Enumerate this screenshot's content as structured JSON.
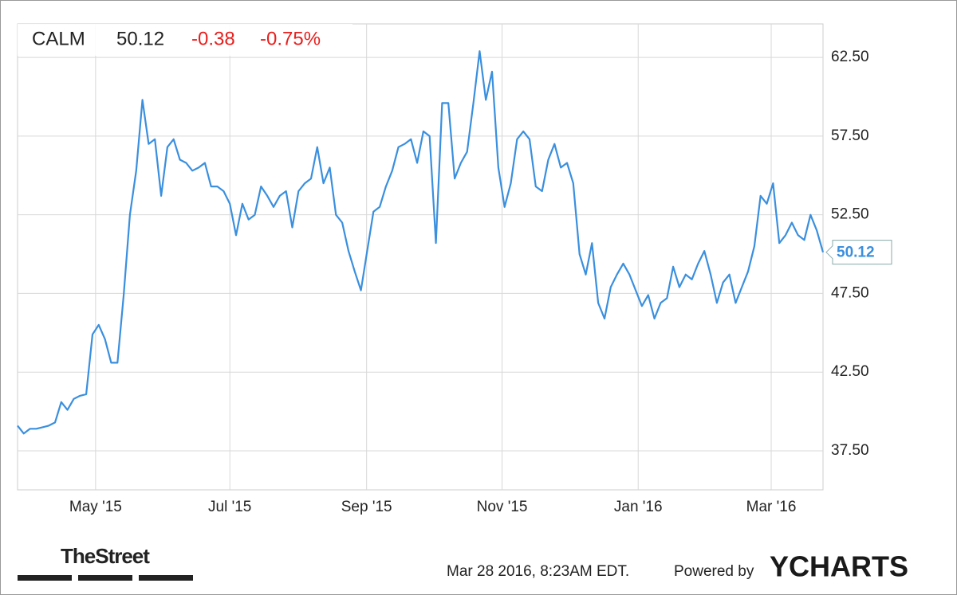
{
  "chart_data": {
    "type": "line",
    "ticker": "CALM",
    "change": "-0.38",
    "change_percent": "-0.75%",
    "timestamp": "Mar 28 2016, 8:23AM EDT.",
    "powered_by": "Powered by",
    "brand": "YCHARTS",
    "source_logo": "TheStreet",
    "series": [
      {
        "name": "CALM",
        "color": "#3a8fde",
        "values": [
          39.1,
          38.6,
          38.9,
          38.9,
          39.0,
          39.1,
          39.3,
          40.6,
          40.1,
          40.8,
          41.0,
          41.1,
          44.9,
          45.5,
          44.6,
          43.1,
          43.1,
          47.4,
          52.5,
          55.3,
          59.8,
          57.0,
          57.3,
          53.7,
          56.8,
          57.3,
          56.0,
          55.8,
          55.3,
          55.5,
          55.8,
          54.3,
          54.3,
          54.0,
          53.2,
          51.2,
          53.2,
          52.2,
          52.5,
          54.3,
          53.7,
          53.0,
          53.7,
          54.0,
          51.7,
          54.0,
          54.5,
          54.8,
          56.8,
          54.5,
          55.5,
          52.5,
          52.0,
          50.2,
          48.9,
          47.7,
          50.2,
          52.7,
          53.0,
          54.3,
          55.3,
          56.8,
          57.0,
          57.3,
          55.8,
          57.8,
          57.5,
          50.7,
          59.6,
          59.6,
          54.8,
          55.8,
          56.5,
          59.6,
          62.9,
          59.8,
          61.6,
          55.5,
          53.0,
          54.5,
          57.3,
          57.8,
          57.3,
          54.3,
          54.0,
          56.0,
          57.0,
          55.5,
          55.8,
          54.5,
          50.0,
          48.7,
          50.7,
          46.9,
          45.9,
          47.9,
          48.7,
          49.4,
          48.7,
          47.7,
          46.7,
          47.4,
          45.9,
          46.9,
          47.2,
          49.2,
          47.9,
          48.7,
          48.4,
          49.4,
          50.2,
          48.7,
          46.9,
          48.2,
          48.7,
          46.9,
          47.9,
          48.9,
          50.5,
          53.7,
          53.2,
          54.5,
          50.7,
          51.2,
          52.0,
          51.2,
          50.9,
          52.5,
          51.5,
          50.12
        ]
      }
    ],
    "xlim": [
      0,
      129
    ],
    "xticks": [
      {
        "value": 12.5,
        "label": "May '15"
      },
      {
        "value": 34,
        "label": "Jul '15"
      },
      {
        "value": 55.9,
        "label": "Sep '15"
      },
      {
        "value": 77.6,
        "label": "Nov '15"
      },
      {
        "value": 99.4,
        "label": "Jan '16"
      },
      {
        "value": 120.7,
        "label": "Mar '16"
      }
    ],
    "ylim": [
      35.02,
      64.63
    ],
    "yticks": [
      {
        "value": 37.5,
        "label": "37.50"
      },
      {
        "value": 42.5,
        "label": "42.50"
      },
      {
        "value": 47.5,
        "label": "47.50"
      },
      {
        "value": 52.5,
        "label": "52.50"
      },
      {
        "value": 57.5,
        "label": "57.50"
      },
      {
        "value": 62.5,
        "label": "62.50"
      }
    ],
    "grid": true
  }
}
